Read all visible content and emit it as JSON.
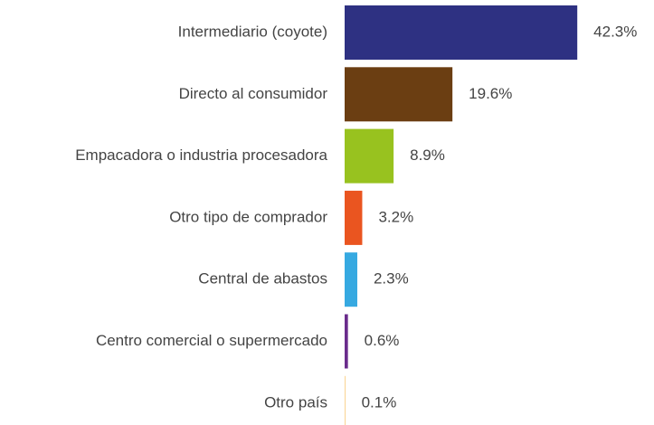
{
  "chart_data": {
    "type": "bar",
    "orientation": "horizontal",
    "categories": [
      "Intermediario (coyote)",
      "Directo al consumidor",
      "Empacadora o industria procesadora",
      "Otro tipo de comprador",
      "Central de abastos",
      "Centro comercial o supermercado",
      "Otro país"
    ],
    "values": [
      42.3,
      19.6,
      8.9,
      3.2,
      2.3,
      0.6,
      0.1
    ],
    "value_labels": [
      "42.3%",
      "19.6%",
      "8.9%",
      "3.2%",
      "2.3%",
      "0.6%",
      "0.1%"
    ],
    "colors": [
      "#2e3182",
      "#6b3e12",
      "#98c21f",
      "#ea5520",
      "#36a9e1",
      "#6a2c8c",
      "#f6b94a"
    ]
  }
}
